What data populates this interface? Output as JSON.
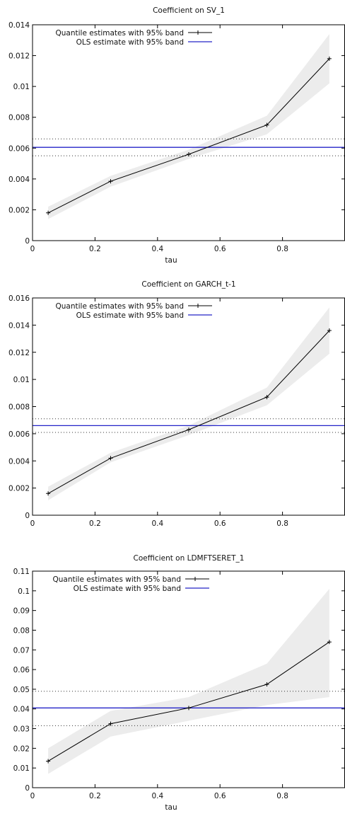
{
  "chart_data": [
    {
      "type": "line",
      "title": "Coefficient on SV_1",
      "xlabel": "tau",
      "ylabel": "",
      "xlim": [
        0,
        1
      ],
      "ylim": [
        0,
        0.014
      ],
      "xticks": [
        "0",
        "0.2",
        "0.4",
        "0.6",
        "0.8"
      ],
      "yticks": [
        "0",
        "0.002",
        "0.004",
        "0.006",
        "0.008",
        "0.01",
        "0.012",
        "0.014"
      ],
      "legend_position": "top-left",
      "series": [
        {
          "name": "Quantile estimates with 95% band",
          "color": "#000000",
          "x": [
            0.05,
            0.25,
            0.5,
            0.75,
            0.95
          ],
          "values": [
            0.0018,
            0.00385,
            0.0056,
            0.0075,
            0.0118
          ],
          "band_lower": [
            0.0014,
            0.0035,
            0.0053,
            0.0069,
            0.0102
          ],
          "band_upper": [
            0.0022,
            0.0042,
            0.0059,
            0.0081,
            0.0134
          ]
        },
        {
          "name": "OLS estimate with 95% band",
          "color": "#2424c8",
          "value": 0.00605,
          "band_lower": 0.0055,
          "band_upper": 0.0066
        }
      ]
    },
    {
      "type": "line",
      "title": "Coefficient on  GARCH_t-1",
      "xlabel": "",
      "ylabel": "",
      "xlim": [
        0,
        1
      ],
      "ylim": [
        0,
        0.016
      ],
      "xticks": [
        "0",
        "0.2",
        "0.4",
        "0.6",
        "0.8"
      ],
      "yticks": [
        "0",
        "0.002",
        "0.004",
        "0.006",
        "0.008",
        "0.01",
        "0.012",
        "0.014",
        "0.016"
      ],
      "legend_position": "top-left",
      "series": [
        {
          "name": "Quantile estimates with 95% band",
          "color": "#000000",
          "x": [
            0.05,
            0.25,
            0.5,
            0.75,
            0.95
          ],
          "values": [
            0.0016,
            0.0042,
            0.0063,
            0.0087,
            0.0136
          ],
          "band_lower": [
            0.0011,
            0.0039,
            0.0059,
            0.0081,
            0.0119
          ],
          "band_upper": [
            0.0021,
            0.0046,
            0.0066,
            0.0094,
            0.0153
          ]
        },
        {
          "name": "OLS estimate with 95% band",
          "color": "#2424c8",
          "value": 0.0066,
          "band_lower": 0.0061,
          "band_upper": 0.0071
        }
      ]
    },
    {
      "type": "line",
      "title": "Coefficient on LDMFTSERET_1",
      "xlabel": "tau",
      "ylabel": "",
      "xlim": [
        0,
        1
      ],
      "ylim": [
        0,
        0.11
      ],
      "xticks": [
        "0",
        "0.2",
        "0.4",
        "0.6",
        "0.8"
      ],
      "yticks": [
        "0",
        "0.01",
        "0.02",
        "0.03",
        "0.04",
        "0.05",
        "0.06",
        "0.07",
        "0.08",
        "0.09",
        "0.1",
        "0.11"
      ],
      "legend_position": "top-left",
      "series": [
        {
          "name": "Quantile estimates with 95% band",
          "color": "#000000",
          "x": [
            0.05,
            0.25,
            0.5,
            0.75,
            0.95
          ],
          "values": [
            0.0135,
            0.0325,
            0.0405,
            0.0525,
            0.074
          ],
          "band_lower": [
            0.007,
            0.026,
            0.034,
            0.042,
            0.046
          ],
          "band_upper": [
            0.02,
            0.039,
            0.046,
            0.063,
            0.101
          ]
        },
        {
          "name": "OLS estimate with 95% band",
          "color": "#2424c8",
          "value": 0.0405,
          "band_lower": 0.0315,
          "band_upper": 0.049
        }
      ]
    }
  ]
}
